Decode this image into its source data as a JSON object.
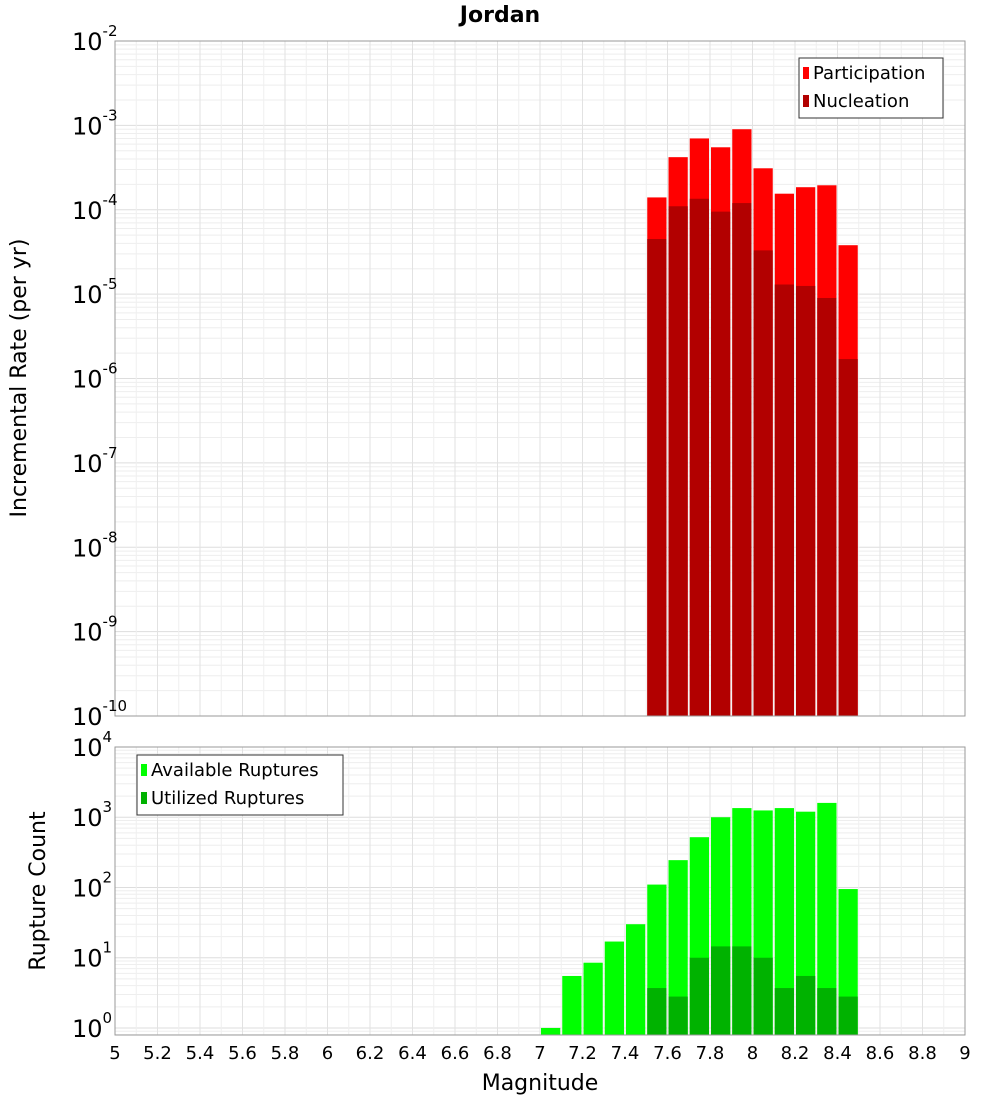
{
  "chart_data": {
    "title": "Jordan",
    "xlabel": "Magnitude",
    "xlim": [
      5,
      9
    ],
    "xticks": [
      "5",
      "5.2",
      "5.4",
      "5.6",
      "5.8",
      "6",
      "6.2",
      "6.4",
      "6.6",
      "6.8",
      "7",
      "7.2",
      "7.4",
      "7.6",
      "7.8",
      "8",
      "8.2",
      "8.4",
      "8.6",
      "8.8",
      "9"
    ],
    "bin_width": 0.1,
    "panels": [
      {
        "id": "rate",
        "type": "bar",
        "yscale": "log",
        "ylabel": "Incremental Rate (per yr)",
        "ylim_exp": [
          -10,
          -2
        ],
        "ytick_labels": [
          {
            "base": "10",
            "exp": "-2"
          },
          {
            "base": "10",
            "exp": "-3"
          },
          {
            "base": "10",
            "exp": "-4"
          },
          {
            "base": "10",
            "exp": "-5"
          },
          {
            "base": "10",
            "exp": "-6"
          },
          {
            "base": "10",
            "exp": "-7"
          },
          {
            "base": "10",
            "exp": "-8"
          },
          {
            "base": "10",
            "exp": "-9"
          },
          {
            "base": "10",
            "exp": "-10"
          }
        ],
        "legend": [
          "Participation",
          "Nucleation"
        ],
        "legend_position": "top-right",
        "x": [
          7.55,
          7.65,
          7.75,
          7.85,
          7.95,
          8.05,
          8.15,
          8.25,
          8.35,
          8.45
        ],
        "series": [
          {
            "name": "Participation",
            "color": "#ff0000",
            "values": [
              0.00014,
              0.00042,
              0.0007,
              0.00055,
              0.0009,
              0.00031,
              0.000155,
              0.000185,
              0.000195,
              3.8e-05
            ]
          },
          {
            "name": "Nucleation",
            "color": "#b20000",
            "values": [
              4.5e-05,
              0.00011,
              0.000135,
              9.5e-05,
              0.00012,
              3.3e-05,
              1.3e-05,
              1.25e-05,
              9e-06,
              1.7e-06
            ]
          }
        ]
      },
      {
        "id": "count",
        "type": "bar",
        "yscale": "log",
        "ylabel": "Rupture Count",
        "ylim_exp": [
          -0.1,
          4
        ],
        "ytick_labels": [
          {
            "base": "10",
            "exp": "4"
          },
          {
            "base": "10",
            "exp": "3"
          },
          {
            "base": "10",
            "exp": "2"
          },
          {
            "base": "10",
            "exp": "1"
          },
          {
            "base": "10",
            "exp": "0"
          }
        ],
        "legend": [
          "Available Ruptures",
          "Utilized Ruptures"
        ],
        "legend_position": "top-left",
        "x": [
          7.05,
          7.15,
          7.25,
          7.35,
          7.45,
          7.55,
          7.65,
          7.75,
          7.85,
          7.95,
          8.05,
          8.15,
          8.25,
          8.35,
          8.45
        ],
        "series": [
          {
            "name": "Available Ruptures",
            "color": "#00ff00",
            "values": [
              1,
              5.5,
              8.5,
              17,
              30,
              110,
              245,
              520,
              1000,
              1350,
              1250,
              1350,
              1200,
              1600,
              95
            ]
          },
          {
            "name": "Utilized Ruptures",
            "color": "#00b200",
            "values": [
              null,
              null,
              null,
              null,
              null,
              3.7,
              2.8,
              10,
              14.5,
              14.5,
              10,
              3.7,
              5.5,
              3.7,
              2.8
            ]
          }
        ]
      }
    ]
  }
}
